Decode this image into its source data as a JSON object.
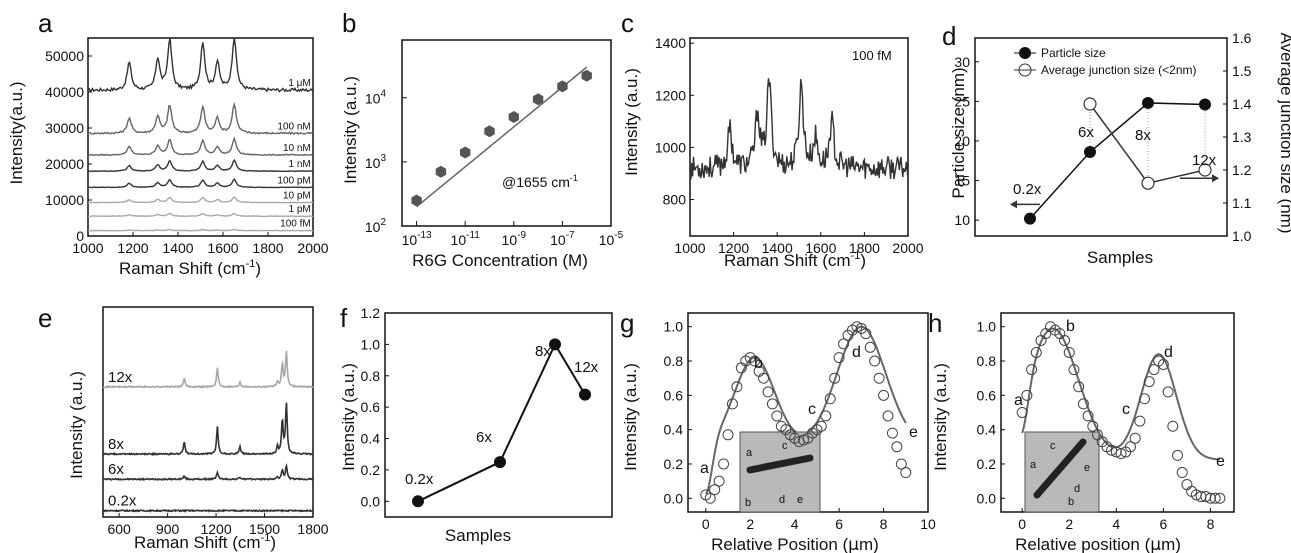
{
  "colors": {
    "axis": "#111111",
    "dark": "#333333",
    "mid": "#666666",
    "light": "#a8a8a8",
    "marker_fill": "#ffffff"
  },
  "panels": {
    "a": {
      "letter": "a",
      "xlabel": "Raman Shift (cm",
      "xlabel_sup": "-1",
      "xlabel_tail": ")",
      "ylabel": "Intensity(a.u.)"
    },
    "b": {
      "letter": "b",
      "xlabel": "R6G Concentration (M)",
      "ylabel": "Intensity (a.u.)",
      "annotation": "@1655 cm",
      "annotation_sup": "-1"
    },
    "c": {
      "letter": "c",
      "xlabel": "Raman Shift (cm",
      "xlabel_sup": "-1",
      "xlabel_tail": ")",
      "ylabel": "Intensity (a.u.)",
      "annotation": "100 fM"
    },
    "d": {
      "letter": "d",
      "xlabel": "Samples",
      "ylabel": "Particle size (nm)",
      "ylabel_right": "Average junction size (nm)"
    },
    "e": {
      "letter": "e",
      "xlabel": "Raman Shift (cm",
      "xlabel_sup": "-1",
      "xlabel_tail": ")",
      "ylabel": "Intensity (a.u.)"
    },
    "f": {
      "letter": "f",
      "xlabel": "Samples",
      "ylabel": "Intensity (a.u.)"
    },
    "g": {
      "letter": "g",
      "xlabel": "Relative Position (",
      "xlabel_mu": "μ",
      "xlabel_tail": "m)",
      "ylabel": "Intensity (a.u.)"
    },
    "h": {
      "letter": "h",
      "xlabel": "Relative position (",
      "xlabel_mu": "μ",
      "xlabel_tail": "m)",
      "ylabel": "Intensity (a.u.)"
    }
  },
  "chart_data": [
    {
      "panel": "a",
      "type": "line",
      "xlabel": "Raman Shift (cm-1)",
      "ylabel": "Intensity(a.u.)",
      "xlim": [
        1000,
        2000
      ],
      "ylim": [
        0,
        55000
      ],
      "xticks": [
        1000,
        1200,
        1400,
        1600,
        1800,
        2000
      ],
      "yticks": [
        0,
        10000,
        20000,
        30000,
        40000,
        50000
      ],
      "peaks": [
        1183,
        1310,
        1363,
        1510,
        1575,
        1650
      ],
      "series": [
        {
          "name": "1 μM",
          "baseline": 40500,
          "scale": 1.0,
          "shade": "dark"
        },
        {
          "name": "100 nM",
          "baseline": 28500,
          "scale": 0.55,
          "shade": "mid"
        },
        {
          "name": "10 nM",
          "baseline": 22500,
          "scale": 0.3,
          "shade": "mid"
        },
        {
          "name": "1 nM",
          "baseline": 18000,
          "scale": 0.2,
          "shade": "dark"
        },
        {
          "name": "100 pM",
          "baseline": 13500,
          "scale": 0.15,
          "shade": "dark"
        },
        {
          "name": "10 pM",
          "baseline": 9300,
          "scale": 0.1,
          "shade": "light"
        },
        {
          "name": "1 pM",
          "baseline": 5500,
          "scale": 0.05,
          "shade": "light"
        },
        {
          "name": "100 fM",
          "baseline": 1500,
          "scale": 0.02,
          "shade": "light"
        }
      ]
    },
    {
      "panel": "b",
      "type": "scatter",
      "xlabel": "R6G Concentration (M)",
      "ylabel": "Intensity (a.u.)",
      "xscale": "log",
      "yscale": "log",
      "xlim_exp": [
        -13.6,
        -5
      ],
      "ylim_exp": [
        2,
        4.9
      ],
      "xtick_labels": [
        "10-13",
        "10-11",
        "10-9",
        "10-7",
        "10-5"
      ],
      "ytick_labels": [
        "102",
        "103",
        "104"
      ],
      "x": [
        1e-13,
        1e-12,
        1e-11,
        1e-10,
        1e-09,
        1e-08,
        1e-07,
        1e-06
      ],
      "y": [
        250,
        700,
        1400,
        3000,
        5000,
        9500,
        15000,
        22000
      ],
      "fit": {
        "x": [
          1e-13,
          1e-06
        ],
        "y": [
          200,
          30000
        ]
      }
    },
    {
      "panel": "c",
      "type": "line",
      "xlabel": "Raman Shift (cm-1)",
      "ylabel": "Intensity (a.u.)",
      "xlim": [
        1000,
        2000
      ],
      "ylim": [
        660,
        1420
      ],
      "xticks": [
        1000,
        1200,
        1400,
        1600,
        1800,
        2000
      ],
      "yticks": [
        800,
        1000,
        1200,
        1400
      ],
      "series": [
        {
          "name": "100 fM",
          "baseline": 920,
          "peaks": [
            [
              1183,
              150
            ],
            [
              1310,
              210
            ],
            [
              1363,
              330
            ],
            [
              1510,
              320
            ],
            [
              1575,
              110
            ],
            [
              1650,
              180
            ]
          ]
        }
      ]
    },
    {
      "panel": "d",
      "type": "line",
      "xlabel": "Samples",
      "ylabel": "Particle size (nm)",
      "ylabel_right": "Average junction size (nm)",
      "categories": [
        "0.2x",
        "6x",
        "8x",
        "12x"
      ],
      "ylim": [
        8,
        33
      ],
      "yticks": [
        10,
        15,
        20,
        25,
        30
      ],
      "ylim_right": [
        1.0,
        1.6
      ],
      "yticks_right": [
        "1.0",
        "1.1",
        "1.2",
        "1.3",
        "1.4",
        "1.5",
        "1.6"
      ],
      "series": [
        {
          "name": "Particle size",
          "values": [
            10.2,
            18.6,
            24.8,
            24.6
          ],
          "axis": "left",
          "marker": "filled"
        },
        {
          "name": "Average junction size (<2nm)",
          "values": [
            null,
            1.4,
            1.16,
            1.2
          ],
          "axis": "right",
          "marker": "open"
        }
      ]
    },
    {
      "panel": "e",
      "type": "line",
      "xlabel": "Raman Shift (cm-1)",
      "ylabel": "Intensity (a.u.)",
      "xlim": [
        500,
        1800
      ],
      "xticks": [
        600,
        900,
        1200,
        1500,
        1800
      ],
      "peaks": [
        1003,
        1208,
        1348,
        1580,
        1610,
        1635
      ],
      "series": [
        {
          "name": "12x",
          "baseline": 0.62,
          "scale": 0.9,
          "shade": "light"
        },
        {
          "name": "8x",
          "baseline": 0.3,
          "scale": 1.3,
          "shade": "dark"
        },
        {
          "name": "6x",
          "baseline": 0.18,
          "scale": 0.35,
          "shade": "dark"
        },
        {
          "name": "0.2x",
          "baseline": 0.03,
          "scale": 0.0,
          "shade": "dark"
        }
      ]
    },
    {
      "panel": "f",
      "type": "line",
      "xlabel": "Samples",
      "ylabel": "Intensity (a.u.)",
      "categories": [
        "0.2x",
        "6x",
        "8x",
        "12x"
      ],
      "ylim": [
        -0.1,
        1.2
      ],
      "yticks": [
        "0.0",
        "0.2",
        "0.4",
        "0.6",
        "0.8",
        "1.0",
        "1.2"
      ],
      "values": [
        0.0,
        0.25,
        1.0,
        0.68
      ]
    },
    {
      "panel": "g",
      "type": "scatter",
      "xlabel": "Relative Position (μm)",
      "ylabel": "Intensity (a.u.)",
      "xlim": [
        -0.8,
        10
      ],
      "ylim": [
        -0.08,
        1.08
      ],
      "xticks": [
        0,
        2,
        4,
        6,
        8,
        10
      ],
      "yticks": [
        "0.0",
        "0.2",
        "0.4",
        "0.6",
        "0.8",
        "1.0"
      ],
      "points_x": [
        0,
        0.2,
        0.4,
        0.6,
        0.8,
        1.0,
        1.2,
        1.4,
        1.6,
        1.8,
        2.0,
        2.2,
        2.4,
        2.6,
        2.8,
        3.0,
        3.2,
        3.4,
        3.6,
        3.8,
        4.0,
        4.2,
        4.4,
        4.6,
        4.8,
        5.0,
        5.2,
        5.4,
        5.6,
        5.8,
        6.0,
        6.2,
        6.4,
        6.6,
        6.8,
        7.0,
        7.2,
        7.4,
        7.6,
        7.8,
        8.0,
        8.2,
        8.4,
        8.6,
        8.8,
        9.0
      ],
      "points_y": [
        0.02,
        0.0,
        0.05,
        0.1,
        0.2,
        0.37,
        0.55,
        0.65,
        0.76,
        0.8,
        0.82,
        0.8,
        0.74,
        0.7,
        0.62,
        0.55,
        0.48,
        0.42,
        0.4,
        0.37,
        0.35,
        0.33,
        0.34,
        0.35,
        0.38,
        0.4,
        0.42,
        0.48,
        0.58,
        0.7,
        0.82,
        0.9,
        0.95,
        0.98,
        1.0,
        0.99,
        0.96,
        0.88,
        0.8,
        0.7,
        0.6,
        0.48,
        0.38,
        0.3,
        0.2,
        0.15
      ],
      "fit_peaks": [
        [
          2.2,
          0.82,
          0.9
        ],
        [
          7.0,
          1.0,
          1.1
        ]
      ],
      "fit_base": 0.34,
      "labels": [
        "a",
        "b",
        "c",
        "d",
        "e"
      ],
      "inset_labels": [
        "a",
        "c",
        "b",
        "d",
        "e"
      ]
    },
    {
      "panel": "h",
      "type": "scatter",
      "xlabel": "Relative position (μm)",
      "ylabel": "Intensity (a.u.)",
      "xlim": [
        -0.9,
        9
      ],
      "ylim": [
        -0.08,
        1.08
      ],
      "xticks": [
        0,
        2,
        4,
        6,
        8
      ],
      "yticks": [
        "0.0",
        "0.2",
        "0.4",
        "0.6",
        "0.8",
        "1.0"
      ],
      "points_x": [
        0,
        0.2,
        0.4,
        0.6,
        0.8,
        1.0,
        1.2,
        1.4,
        1.6,
        1.8,
        2.0,
        2.2,
        2.4,
        2.6,
        2.8,
        3.0,
        3.2,
        3.4,
        3.6,
        3.8,
        4.0,
        4.2,
        4.4,
        4.6,
        4.8,
        5.0,
        5.2,
        5.4,
        5.6,
        5.8,
        6.0,
        6.2,
        6.4,
        6.6,
        6.8,
        7.0,
        7.2,
        7.4,
        7.6,
        7.8,
        8.0,
        8.2,
        8.4
      ],
      "points_y": [
        0.5,
        0.6,
        0.75,
        0.85,
        0.92,
        0.96,
        1.0,
        0.98,
        0.96,
        0.92,
        0.85,
        0.75,
        0.65,
        0.55,
        0.48,
        0.42,
        0.37,
        0.33,
        0.3,
        0.28,
        0.27,
        0.26,
        0.27,
        0.3,
        0.35,
        0.45,
        0.58,
        0.68,
        0.75,
        0.8,
        0.78,
        0.62,
        0.42,
        0.25,
        0.15,
        0.08,
        0.04,
        0.02,
        0.01,
        0.01,
        0.0,
        0.0,
        0.0
      ],
      "fit_peaks": [
        [
          1.3,
          0.99,
          1.1
        ],
        [
          5.8,
          0.84,
          0.75
        ]
      ],
      "fit_base": 0.25,
      "labels": [
        "a",
        "b",
        "c",
        "d",
        "e"
      ],
      "inset_labels": [
        "a",
        "c",
        "b",
        "d",
        "e"
      ]
    }
  ]
}
